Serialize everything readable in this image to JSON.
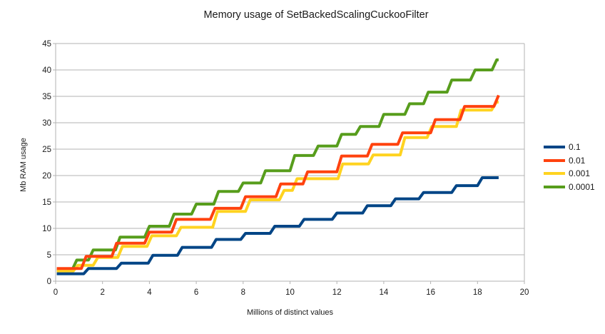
{
  "chart_data": {
    "type": "line",
    "step_style": "ramped-steps",
    "title": "Memory usage of SetBackedScalingCuckooFilter",
    "xlabel": "Millions of distinct values",
    "ylabel": "Mb RAM usage",
    "xlim": [
      0,
      20
    ],
    "ylim": [
      0,
      45
    ],
    "x_ticks": [
      0,
      2,
      4,
      6,
      8,
      10,
      12,
      14,
      16,
      18,
      20
    ],
    "y_ticks": [
      0,
      5,
      10,
      15,
      20,
      25,
      30,
      35,
      40,
      45
    ],
    "grid": "horizontal-only",
    "grid_color": "#b3b3b3",
    "axis_color": "#b3b3b3",
    "text_color": "#1a1a1a",
    "legend_position": "right",
    "x_end": 18.9,
    "series": [
      {
        "name": "0.1",
        "color": "#004586",
        "steps": [
          [
            0.05,
            1.4
          ],
          [
            1.3,
            2.4
          ],
          [
            2.7,
            3.4
          ],
          [
            4.05,
            4.9
          ],
          [
            5.3,
            6.4
          ],
          [
            6.75,
            7.9
          ],
          [
            8.0,
            9.05
          ],
          [
            9.25,
            10.4
          ],
          [
            10.5,
            11.7
          ],
          [
            11.9,
            12.9
          ],
          [
            13.2,
            14.3
          ],
          [
            14.4,
            15.6
          ],
          [
            15.6,
            16.8
          ],
          [
            17.0,
            18.1
          ],
          [
            18.1,
            19.6
          ]
        ]
      },
      {
        "name": "0.01",
        "color": "#ff420e",
        "steps": [
          [
            0.05,
            2.4
          ],
          [
            1.2,
            4.7
          ],
          [
            2.5,
            7.2
          ],
          [
            3.9,
            9.3
          ],
          [
            5.05,
            11.7
          ],
          [
            6.7,
            13.8
          ],
          [
            8.0,
            16.0
          ],
          [
            9.5,
            18.4
          ],
          [
            10.65,
            20.7
          ],
          [
            12.1,
            23.7
          ],
          [
            13.4,
            25.9
          ],
          [
            14.7,
            28.1
          ],
          [
            16.1,
            30.6
          ],
          [
            17.35,
            33.1
          ],
          [
            18.8,
            35.2
          ]
        ]
      },
      {
        "name": "0.001",
        "color": "#ffd320",
        "steps": [
          [
            0.05,
            1.9
          ],
          [
            0.85,
            3.0
          ],
          [
            1.7,
            4.5
          ],
          [
            2.75,
            6.6
          ],
          [
            4.0,
            8.6
          ],
          [
            5.25,
            10.2
          ],
          [
            6.8,
            13.2
          ],
          [
            8.2,
            15.4
          ],
          [
            9.65,
            17.2
          ],
          [
            10.2,
            19.4
          ],
          [
            12.15,
            22.2
          ],
          [
            13.45,
            23.9
          ],
          [
            14.8,
            27.2
          ],
          [
            15.95,
            29.3
          ],
          [
            17.2,
            32.4
          ],
          [
            18.7,
            33.9
          ]
        ]
      },
      {
        "name": "0.0001",
        "color": "#579d1c",
        "steps": [
          [
            0.05,
            2.1
          ],
          [
            0.8,
            4.0
          ],
          [
            1.5,
            5.9
          ],
          [
            2.65,
            8.35
          ],
          [
            3.9,
            10.4
          ],
          [
            4.95,
            12.7
          ],
          [
            5.9,
            14.6
          ],
          [
            6.85,
            17.0
          ],
          [
            7.9,
            18.6
          ],
          [
            8.85,
            20.9
          ],
          [
            10.1,
            23.8
          ],
          [
            11.1,
            25.6
          ],
          [
            12.1,
            27.8
          ],
          [
            12.9,
            29.3
          ],
          [
            13.9,
            31.6
          ],
          [
            15.0,
            33.6
          ],
          [
            15.8,
            35.8
          ],
          [
            16.8,
            38.1
          ],
          [
            17.8,
            40.0
          ],
          [
            18.72,
            41.9
          ]
        ]
      }
    ]
  }
}
